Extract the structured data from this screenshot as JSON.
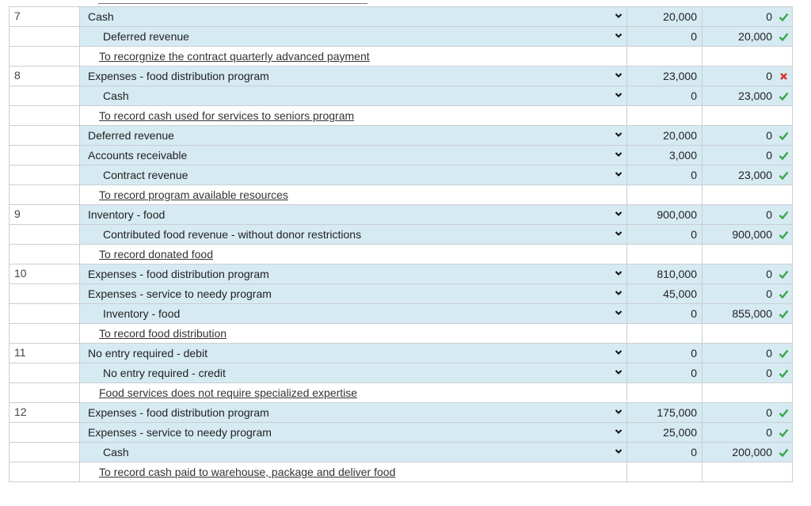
{
  "rows": [
    {
      "type": "entry",
      "num": "7",
      "account": "Cash",
      "indent": false,
      "debit": "20,000",
      "credit": "0",
      "mark": "check"
    },
    {
      "type": "entry",
      "num": "",
      "account": "Deferred revenue",
      "indent": true,
      "debit": "0",
      "credit": "20,000",
      "mark": "check"
    },
    {
      "type": "desc",
      "num": "",
      "text": "To recorgnize the contract quarterly advanced payment"
    },
    {
      "type": "entry",
      "num": "8",
      "account": "Expenses - food distribution program",
      "indent": false,
      "debit": "23,000",
      "credit": "0",
      "mark": "cross"
    },
    {
      "type": "entry",
      "num": "",
      "account": "Cash",
      "indent": true,
      "debit": "0",
      "credit": "23,000",
      "mark": "check"
    },
    {
      "type": "desc",
      "num": "",
      "text": "To record cash used for services to seniors program"
    },
    {
      "type": "entry",
      "num": "",
      "account": "Deferred revenue",
      "indent": false,
      "debit": "20,000",
      "credit": "0",
      "mark": "check"
    },
    {
      "type": "entry",
      "num": "",
      "account": "Accounts receivable",
      "indent": false,
      "debit": "3,000",
      "credit": "0",
      "mark": "check"
    },
    {
      "type": "entry",
      "num": "",
      "account": "Contract revenue",
      "indent": true,
      "debit": "0",
      "credit": "23,000",
      "mark": "check"
    },
    {
      "type": "desc",
      "num": "",
      "text": "To record program available resources"
    },
    {
      "type": "entry",
      "num": "9",
      "account": "Inventory - food",
      "indent": false,
      "debit": "900,000",
      "credit": "0",
      "mark": "check"
    },
    {
      "type": "entry",
      "num": "",
      "account": "Contributed food revenue - without donor restrictions",
      "indent": true,
      "debit": "0",
      "credit": "900,000",
      "mark": "check"
    },
    {
      "type": "desc",
      "num": "",
      "text": "To record donated food"
    },
    {
      "type": "entry",
      "num": "10",
      "account": "Expenses - food distribution program",
      "indent": false,
      "debit": "810,000",
      "credit": "0",
      "mark": "check"
    },
    {
      "type": "entry",
      "num": "",
      "account": "Expenses - service to needy program",
      "indent": false,
      "debit": "45,000",
      "credit": "0",
      "mark": "check"
    },
    {
      "type": "entry",
      "num": "",
      "account": "Inventory - food",
      "indent": true,
      "debit": "0",
      "credit": "855,000",
      "mark": "check"
    },
    {
      "type": "desc",
      "num": "",
      "text": "To record food distribution"
    },
    {
      "type": "entry",
      "num": "11",
      "account": "No entry required - debit",
      "indent": false,
      "debit": "0",
      "credit": "0",
      "mark": "check"
    },
    {
      "type": "entry",
      "num": "",
      "account": "No entry required - credit",
      "indent": true,
      "debit": "0",
      "credit": "0",
      "mark": "check"
    },
    {
      "type": "desc",
      "num": "",
      "text": "Food services does not require specialized expertise"
    },
    {
      "type": "entry",
      "num": "12",
      "account": "Expenses - food distribution program",
      "indent": false,
      "debit": "175,000",
      "credit": "0",
      "mark": "check"
    },
    {
      "type": "entry",
      "num": "",
      "account": "Expenses - service to needy program",
      "indent": false,
      "debit": "25,000",
      "credit": "0",
      "mark": "check"
    },
    {
      "type": "entry",
      "num": "",
      "account": "Cash",
      "indent": true,
      "debit": "0",
      "credit": "200,000",
      "mark": "check"
    },
    {
      "type": "desc",
      "num": "",
      "text": "To record cash paid to warehouse, package and deliver food"
    }
  ],
  "icons": {
    "dropdown": "chevron-down-icon",
    "correct": "check-icon",
    "incorrect": "cross-icon"
  },
  "colors": {
    "entry_bg": "#d6eaf2",
    "correct": "#3aa64a",
    "incorrect": "#d9322b"
  }
}
